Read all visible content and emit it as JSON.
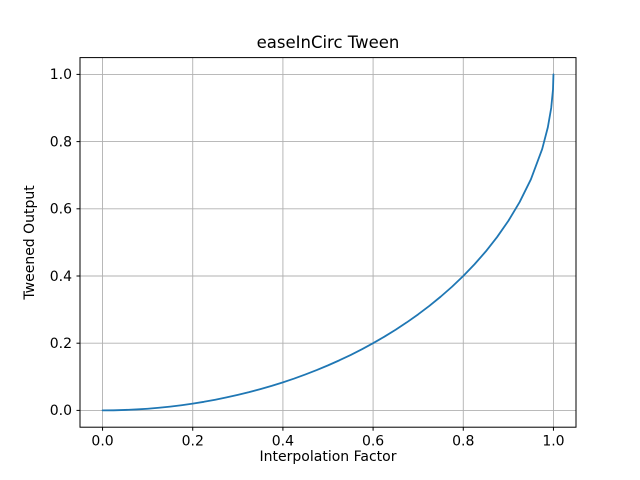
{
  "figure": {
    "background": "#ffffff"
  },
  "chart_data": {
    "type": "line",
    "title": "easeInCirc Tween",
    "xlabel": "Interpolation Factor",
    "ylabel": "Tweened Output",
    "xlim": [
      -0.05,
      1.05
    ],
    "ylim": [
      -0.05,
      1.05
    ],
    "xticks": [
      0.0,
      0.2,
      0.4,
      0.6,
      0.8,
      1.0
    ],
    "yticks": [
      0.0,
      0.2,
      0.4,
      0.6,
      0.8,
      1.0
    ],
    "grid": true,
    "grid_color": "#b0b0b0",
    "spine_color": "#000000",
    "legend": "none",
    "series": [
      {
        "name": "easeInCirc",
        "color": "#1f77b4",
        "line_width": 1.8,
        "x": [
          0,
          0.025,
          0.05,
          0.075,
          0.1,
          0.125,
          0.15,
          0.175,
          0.2,
          0.225,
          0.25,
          0.275,
          0.3,
          0.325,
          0.35,
          0.375,
          0.4,
          0.425,
          0.45,
          0.475,
          0.5,
          0.525,
          0.55,
          0.575,
          0.6,
          0.625,
          0.65,
          0.675,
          0.7,
          0.725,
          0.75,
          0.775,
          0.8,
          0.825,
          0.85,
          0.875,
          0.9,
          0.925,
          0.95,
          0.975,
          0.9875,
          0.995,
          0.999,
          1.0
        ],
        "y": [
          0,
          0.0003,
          0.0013,
          0.0028,
          0.005,
          0.0078,
          0.0113,
          0.0154,
          0.0202,
          0.0256,
          0.0318,
          0.0386,
          0.0461,
          0.0543,
          0.0633,
          0.073,
          0.0835,
          0.0948,
          0.107,
          0.12,
          0.134,
          0.1489,
          0.1648,
          0.1818,
          0.2,
          0.2194,
          0.2401,
          0.2622,
          0.2859,
          0.3113,
          0.3386,
          0.368,
          0.4,
          0.4349,
          0.4732,
          0.5159,
          0.5641,
          0.62,
          0.6878,
          0.7778,
          0.8424,
          0.9001,
          0.9553,
          1.0
        ]
      }
    ]
  }
}
